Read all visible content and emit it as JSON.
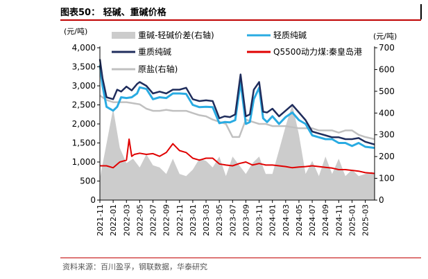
{
  "header": {
    "title": "图表50：  轻碱、重碱价格"
  },
  "footer": {
    "source": "资料来源：百川盈孚，钢联数据，华泰研究"
  },
  "chart_data": {
    "type": "line",
    "left_unit": "(元/吨)",
    "right_unit": "(元/吨)",
    "ylim": [
      0,
      4000
    ],
    "y2lim": [
      0,
      700
    ],
    "y_ticks": [
      "0",
      "500",
      "1,000",
      "1,500",
      "2,000",
      "2,500",
      "3,000",
      "3,500",
      "4,000"
    ],
    "y2_ticks": [
      "0",
      "100",
      "200",
      "300",
      "400",
      "500",
      "600",
      "700"
    ],
    "x_labels": [
      "2021-11",
      "2022-01",
      "2022-03",
      "2022-05",
      "2022-07",
      "2022-09",
      "2022-11",
      "2023-01",
      "2023-03",
      "2023-05",
      "2023-07",
      "2023-09",
      "2023-11",
      "2024-01",
      "2024-03",
      "2024-05",
      "2024-07",
      "2024-09",
      "2024-11",
      "2025-01",
      "2025-03"
    ],
    "legend": [
      "重碱-轻碱价差(右轴)",
      "轻质纯碱",
      "重质纯碱",
      "Q5500动力煤:秦皇岛港",
      "原盐(右轴)"
    ],
    "colors": {
      "spread": "#cccccc",
      "light": "#29abe2",
      "heavy": "#1f2d5c",
      "coal": "#e00000",
      "salt": "#c0c0c0"
    },
    "series": [
      {
        "name": "重碱-轻碱价差(右轴)",
        "axis": "right",
        "style": "area",
        "x": [
          0,
          0.5,
          1,
          1.5,
          2,
          2.5,
          3,
          3.5,
          4,
          4.5,
          5,
          5.5,
          6,
          6.5,
          7,
          7.5,
          8,
          8.5,
          9,
          9.5,
          10,
          10.5,
          11,
          11.5,
          12,
          12.5,
          13,
          13.5,
          14,
          14.5,
          15,
          15.5,
          16,
          16.5,
          17,
          17.5,
          18,
          18.5,
          19,
          19.5,
          20,
          20.5,
          20.7
        ],
        "values": [
          100,
          260,
          420,
          240,
          170,
          190,
          150,
          210,
          160,
          150,
          120,
          190,
          120,
          110,
          140,
          190,
          180,
          150,
          200,
          110,
          200,
          160,
          120,
          170,
          200,
          120,
          120,
          230,
          340,
          440,
          300,
          120,
          180,
          110,
          200,
          120,
          190,
          110,
          140,
          110,
          120,
          130,
          120
        ]
      },
      {
        "name": "轻质纯碱",
        "axis": "left",
        "x": [
          0,
          0.2,
          0.5,
          1,
          1.3,
          1.6,
          2,
          2.4,
          2.8,
          3,
          3.5,
          4,
          4.5,
          5,
          5.5,
          6,
          6.5,
          7,
          7.5,
          8,
          8.5,
          9,
          9.4,
          9.8,
          10.2,
          10.6,
          11,
          11.3,
          11.6,
          12,
          12.3,
          12.6,
          13,
          13.5,
          14,
          14.5,
          15,
          15.5,
          16,
          16.5,
          17,
          17.5,
          18,
          18.5,
          19,
          19.5,
          20,
          20.7
        ],
        "values": [
          3550,
          3000,
          2450,
          2350,
          2450,
          2700,
          2680,
          2700,
          2800,
          2960,
          2920,
          2650,
          2700,
          2680,
          2800,
          2800,
          2790,
          2500,
          2440,
          2450,
          2440,
          2020,
          2050,
          2040,
          2100,
          3100,
          2000,
          2050,
          2650,
          2950,
          2150,
          2050,
          2200,
          2000,
          2180,
          2300,
          2100,
          2000,
          1700,
          1650,
          1600,
          1600,
          1500,
          1500,
          1420,
          1500,
          1400,
          1370
        ]
      },
      {
        "name": "重质纯碱",
        "axis": "left",
        "x": [
          0,
          0.2,
          0.5,
          1,
          1.3,
          1.6,
          2,
          2.4,
          2.8,
          3,
          3.5,
          4,
          4.5,
          5,
          5.5,
          6,
          6.5,
          7,
          7.5,
          8,
          8.5,
          9,
          9.4,
          9.8,
          10.2,
          10.6,
          11,
          11.3,
          11.6,
          12,
          12.3,
          12.6,
          13,
          13.5,
          14,
          14.5,
          15,
          15.5,
          16,
          16.5,
          17,
          17.5,
          18,
          18.5,
          19,
          19.5,
          20,
          20.7
        ],
        "values": [
          3700,
          3200,
          2700,
          2650,
          2900,
          2850,
          2980,
          2880,
          3050,
          3100,
          3000,
          2800,
          2850,
          2800,
          2900,
          2900,
          2950,
          2650,
          2600,
          2620,
          2600,
          2150,
          2200,
          2180,
          2250,
          3300,
          2200,
          2250,
          2900,
          3100,
          2320,
          2300,
          2400,
          2200,
          2350,
          2500,
          2300,
          2100,
          1800,
          1750,
          1700,
          1650,
          1650,
          1600,
          1600,
          1630,
          1530,
          1460
        ]
      },
      {
        "name": "Q5500动力煤:秦皇岛港",
        "axis": "left",
        "x": [
          0,
          0.5,
          1,
          1.5,
          2,
          2.2,
          2.4,
          2.6,
          3,
          3.5,
          4,
          4.5,
          5,
          5.5,
          6,
          6.5,
          7,
          7.5,
          8,
          8.5,
          9,
          9.5,
          10,
          10.5,
          11,
          11.5,
          12,
          12.5,
          13,
          13.5,
          14,
          14.5,
          15,
          15.5,
          16,
          16.5,
          17,
          17.5,
          18,
          18.5,
          19,
          19.5,
          20,
          20.7
        ],
        "values": [
          900,
          900,
          850,
          1000,
          1050,
          1600,
          1150,
          1200,
          1230,
          1200,
          1220,
          1150,
          1250,
          1480,
          1300,
          1250,
          1100,
          1050,
          1100,
          1100,
          950,
          920,
          900,
          960,
          1000,
          920,
          960,
          920,
          920,
          900,
          880,
          850,
          870,
          880,
          900,
          880,
          860,
          840,
          800,
          800,
          780,
          760,
          720,
          700
        ]
      },
      {
        "name": "原盐(右轴)",
        "axis": "right",
        "x": [
          0,
          0.5,
          1,
          1.5,
          2,
          2.5,
          3,
          3.5,
          4,
          4.5,
          5,
          5.5,
          6,
          6.5,
          7,
          7.5,
          8,
          8.5,
          9,
          9.5,
          10,
          10.5,
          11,
          11.5,
          12,
          12.5,
          13,
          13.5,
          14,
          14.5,
          15,
          15.5,
          16,
          16.5,
          17,
          17.5,
          18,
          18.5,
          19,
          19.5,
          20,
          20.7
        ],
        "values": [
          480,
          460,
          450,
          450,
          450,
          445,
          440,
          420,
          410,
          410,
          415,
          410,
          410,
          410,
          400,
          390,
          385,
          370,
          360,
          350,
          290,
          290,
          370,
          360,
          350,
          350,
          340,
          340,
          340,
          335,
          330,
          330,
          330,
          320,
          320,
          320,
          310,
          320,
          320,
          300,
          290,
          280
        ]
      }
    ]
  }
}
